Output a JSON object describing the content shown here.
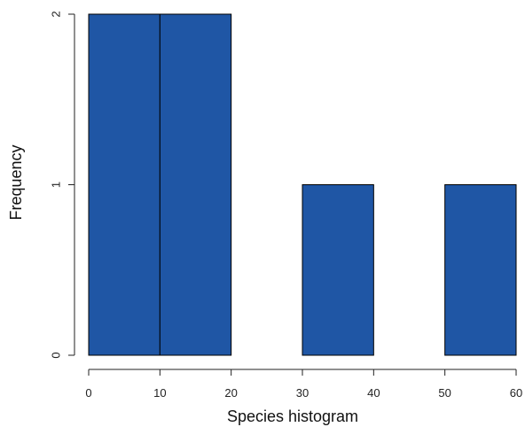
{
  "chart_data": {
    "type": "bar",
    "title": "",
    "xlabel": "Species histogram",
    "ylabel": "Frequency",
    "bins": [
      {
        "start": 0,
        "end": 10,
        "count": 2
      },
      {
        "start": 10,
        "end": 20,
        "count": 2
      },
      {
        "start": 20,
        "end": 30,
        "count": 0
      },
      {
        "start": 30,
        "end": 40,
        "count": 1
      },
      {
        "start": 40,
        "end": 50,
        "count": 0
      },
      {
        "start": 50,
        "end": 60,
        "count": 1
      }
    ],
    "xticks": [
      0,
      10,
      20,
      30,
      40,
      50,
      60
    ],
    "yticks": [
      0,
      1,
      2
    ],
    "xlim": [
      0,
      60
    ],
    "ylim": [
      0,
      2
    ],
    "grid": false,
    "colors": {
      "bar_fill": "#1f56a5",
      "bar_stroke": "#000000",
      "axis": "#222222"
    }
  }
}
